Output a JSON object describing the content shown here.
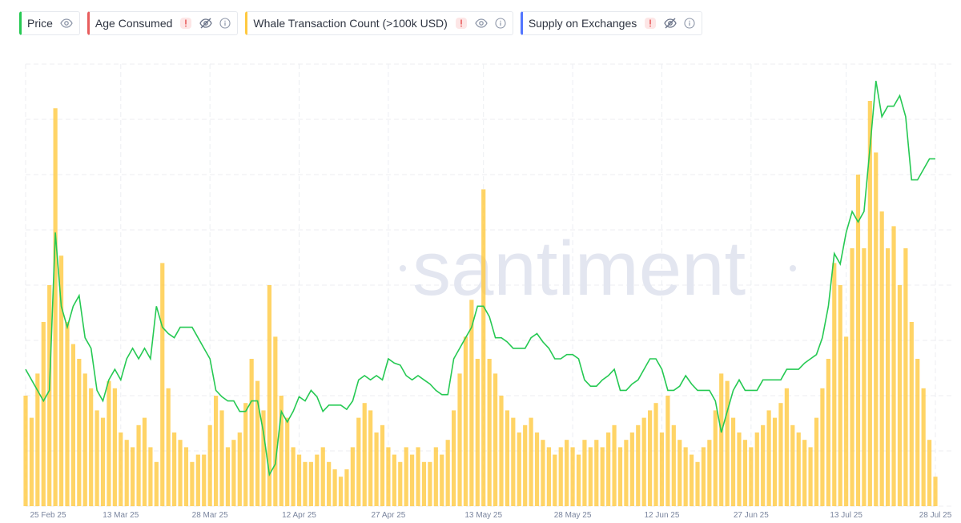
{
  "chart_data": {
    "type": "line-bar",
    "watermark": "santiment",
    "categories": [
      "25 Feb 25",
      null,
      null,
      null,
      null,
      null,
      null,
      null,
      null,
      null,
      null,
      null,
      null,
      null,
      null,
      null,
      "13 Mar 25",
      null,
      null,
      null,
      null,
      null,
      null,
      null,
      null,
      null,
      null,
      null,
      null,
      null,
      null,
      "28 Mar 25",
      null,
      null,
      null,
      null,
      null,
      null,
      null,
      null,
      null,
      null,
      null,
      null,
      null,
      null,
      "12 Apr 25",
      null,
      null,
      null,
      null,
      null,
      null,
      null,
      null,
      null,
      null,
      null,
      null,
      null,
      null,
      "27 Apr 25",
      null,
      null,
      null,
      null,
      null,
      null,
      null,
      null,
      null,
      null,
      null,
      null,
      null,
      null,
      null,
      "13 May 25",
      null,
      null,
      null,
      null,
      null,
      null,
      null,
      null,
      null,
      null,
      null,
      null,
      null,
      null,
      "28 May 25",
      null,
      null,
      null,
      null,
      null,
      null,
      null,
      null,
      null,
      null,
      null,
      null,
      null,
      null,
      "12 Jun 25",
      null,
      null,
      null,
      null,
      null,
      null,
      null,
      null,
      null,
      null,
      null,
      null,
      null,
      null,
      "27 Jun 25",
      null,
      null,
      null,
      null,
      null,
      null,
      null,
      null,
      null,
      null,
      null,
      null,
      null,
      null,
      null,
      "13 Jul 25",
      null,
      null,
      null,
      null,
      null,
      null,
      null,
      null,
      null,
      null,
      null,
      null,
      null,
      null,
      "28 Jul 25"
    ],
    "ylim": [
      1.6,
      3.7
    ],
    "y2lim": [
      0,
      600
    ],
    "grid": true,
    "series": [
      {
        "name": "Price",
        "color": "#26c953",
        "mark": "line",
        "visible": true,
        "error": false,
        "info": false,
        "values": [
          2.25,
          2.2,
          2.15,
          2.1,
          2.15,
          2.9,
          2.55,
          2.45,
          2.55,
          2.6,
          2.4,
          2.35,
          2.15,
          2.1,
          2.2,
          2.25,
          2.2,
          2.3,
          2.35,
          2.3,
          2.35,
          2.3,
          2.55,
          2.45,
          2.42,
          2.4,
          2.45,
          2.45,
          2.45,
          2.4,
          2.35,
          2.3,
          2.15,
          2.12,
          2.1,
          2.1,
          2.05,
          2.05,
          2.1,
          2.1,
          1.95,
          1.75,
          1.8,
          2.05,
          2.0,
          2.05,
          2.12,
          2.1,
          2.15,
          2.12,
          2.05,
          2.08,
          2.08,
          2.08,
          2.06,
          2.1,
          2.2,
          2.22,
          2.2,
          2.22,
          2.2,
          2.3,
          2.28,
          2.27,
          2.22,
          2.2,
          2.22,
          2.2,
          2.18,
          2.15,
          2.13,
          2.13,
          2.3,
          2.35,
          2.4,
          2.45,
          2.55,
          2.55,
          2.5,
          2.4,
          2.4,
          2.38,
          2.35,
          2.35,
          2.35,
          2.4,
          2.42,
          2.38,
          2.35,
          2.3,
          2.3,
          2.32,
          2.32,
          2.3,
          2.2,
          2.17,
          2.17,
          2.2,
          2.22,
          2.25,
          2.15,
          2.15,
          2.18,
          2.2,
          2.25,
          2.3,
          2.3,
          2.25,
          2.15,
          2.15,
          2.17,
          2.22,
          2.18,
          2.15,
          2.15,
          2.15,
          2.1,
          1.95,
          2.05,
          2.15,
          2.2,
          2.15,
          2.15,
          2.15,
          2.2,
          2.2,
          2.2,
          2.2,
          2.25,
          2.25,
          2.25,
          2.28,
          2.3,
          2.32,
          2.4,
          2.55,
          2.8,
          2.75,
          2.9,
          3.0,
          2.95,
          3.0,
          3.3,
          3.62,
          3.45,
          3.5,
          3.5,
          3.55,
          3.45,
          3.15,
          3.15,
          3.2,
          3.25,
          3.25
        ]
      },
      {
        "name": "Age Consumed",
        "color": "#e85d5d",
        "visible": false,
        "error": true,
        "info": true
      },
      {
        "name": "Whale Transaction Count (>100k USD)",
        "color": "#ffc940",
        "mark": "bar",
        "axis": "y2",
        "visible": true,
        "error": true,
        "info": true,
        "values": [
          150,
          120,
          180,
          250,
          300,
          540,
          340,
          250,
          220,
          200,
          180,
          160,
          130,
          120,
          170,
          160,
          100,
          90,
          80,
          110,
          120,
          80,
          60,
          330,
          160,
          100,
          90,
          80,
          60,
          70,
          70,
          110,
          150,
          130,
          80,
          90,
          100,
          140,
          200,
          170,
          130,
          300,
          230,
          150,
          120,
          80,
          70,
          60,
          60,
          70,
          80,
          60,
          50,
          40,
          50,
          80,
          120,
          140,
          130,
          100,
          110,
          80,
          70,
          60,
          80,
          70,
          80,
          60,
          60,
          80,
          70,
          90,
          130,
          180,
          230,
          280,
          200,
          430,
          200,
          180,
          150,
          130,
          120,
          100,
          110,
          120,
          100,
          90,
          80,
          70,
          80,
          90,
          80,
          70,
          90,
          80,
          90,
          80,
          100,
          110,
          80,
          90,
          100,
          110,
          120,
          130,
          140,
          100,
          150,
          110,
          90,
          80,
          70,
          60,
          80,
          90,
          130,
          180,
          170,
          120,
          100,
          90,
          80,
          100,
          110,
          130,
          120,
          140,
          160,
          110,
          100,
          90,
          80,
          120,
          160,
          200,
          330,
          300,
          230,
          350,
          450,
          350,
          550,
          480,
          400,
          350,
          380,
          300,
          350,
          250,
          200,
          160,
          90,
          40
        ]
      },
      {
        "name": "Supply on Exchanges",
        "color": "#5275ff",
        "visible": false,
        "error": true,
        "info": true
      }
    ]
  }
}
